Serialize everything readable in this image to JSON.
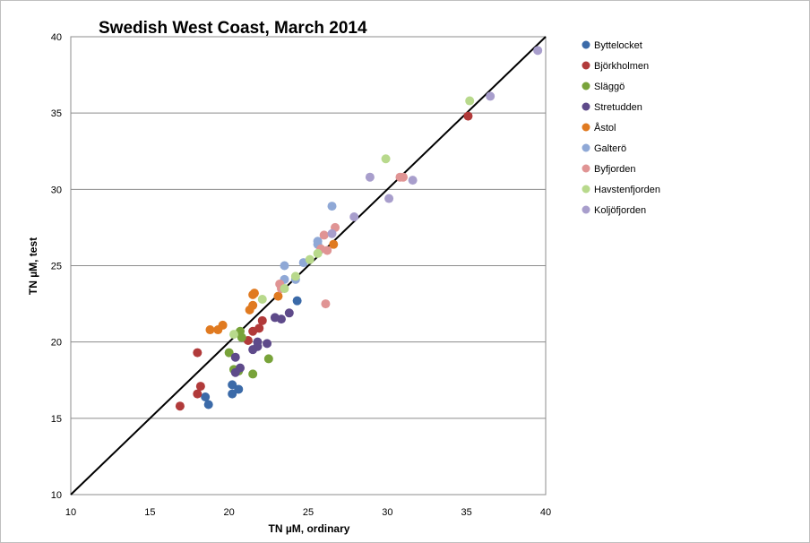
{
  "chart_data": {
    "type": "scatter",
    "title": "Swedish West Coast, March 2014",
    "xlabel": "TN µM, ordinary",
    "ylabel": "TN µM, test",
    "xlim": [
      10,
      40
    ],
    "ylim": [
      10,
      40
    ],
    "xticks": [
      10,
      15,
      20,
      25,
      30,
      35,
      40
    ],
    "yticks": [
      10,
      15,
      20,
      25,
      30,
      35,
      40
    ],
    "grid": "horizontal",
    "legend_position": "right",
    "reference_line": {
      "from": [
        10,
        10
      ],
      "to": [
        40,
        40
      ],
      "color": "#000000"
    },
    "series": [
      {
        "name": "Byttelocket",
        "color": "#3b6aa8",
        "points": [
          [
            18.5,
            16.4
          ],
          [
            18.7,
            15.9
          ],
          [
            20.2,
            17.2
          ],
          [
            20.6,
            16.9
          ],
          [
            20.2,
            16.6
          ],
          [
            24.3,
            22.7
          ]
        ]
      },
      {
        "name": "Björkholmen",
        "color": "#b13a3a",
        "points": [
          [
            16.9,
            15.8
          ],
          [
            18.0,
            16.6
          ],
          [
            18.2,
            17.1
          ],
          [
            18.0,
            19.3
          ],
          [
            21.2,
            20.1
          ],
          [
            21.5,
            20.7
          ],
          [
            21.9,
            20.9
          ],
          [
            22.1,
            21.4
          ],
          [
            35.1,
            34.8
          ]
        ]
      },
      {
        "name": "Släggö",
        "color": "#78a33a",
        "points": [
          [
            20.0,
            19.3
          ],
          [
            20.3,
            18.2
          ],
          [
            20.6,
            18.1
          ],
          [
            20.7,
            20.7
          ],
          [
            21.5,
            17.9
          ],
          [
            22.5,
            18.9
          ],
          [
            20.8,
            20.3
          ]
        ]
      },
      {
        "name": "Stretudden",
        "color": "#5e4a8a",
        "points": [
          [
            20.4,
            19.0
          ],
          [
            20.4,
            18.0
          ],
          [
            20.7,
            18.3
          ],
          [
            21.5,
            19.5
          ],
          [
            21.8,
            20.0
          ],
          [
            21.8,
            19.7
          ],
          [
            22.4,
            19.9
          ],
          [
            22.9,
            21.6
          ],
          [
            23.3,
            21.5
          ],
          [
            23.8,
            21.9
          ]
        ]
      },
      {
        "name": "Åstol",
        "color": "#e07a20",
        "points": [
          [
            18.8,
            20.8
          ],
          [
            19.3,
            20.8
          ],
          [
            19.6,
            21.1
          ],
          [
            21.3,
            22.1
          ],
          [
            21.5,
            22.4
          ],
          [
            21.5,
            23.1
          ],
          [
            21.6,
            23.2
          ],
          [
            23.1,
            23.0
          ],
          [
            26.6,
            26.4
          ]
        ]
      },
      {
        "name": "Galterö",
        "color": "#8fa8d6",
        "points": [
          [
            23.5,
            25.0
          ],
          [
            23.5,
            24.1
          ],
          [
            24.2,
            24.1
          ],
          [
            24.7,
            25.2
          ],
          [
            25.6,
            26.4
          ],
          [
            25.6,
            26.6
          ],
          [
            26.5,
            28.9
          ]
        ]
      },
      {
        "name": "Byfjorden",
        "color": "#e09494",
        "points": [
          [
            23.2,
            23.8
          ],
          [
            23.3,
            23.5
          ],
          [
            25.8,
            26.1
          ],
          [
            26.1,
            22.5
          ],
          [
            26.2,
            26.0
          ],
          [
            26.0,
            27.0
          ],
          [
            26.7,
            27.5
          ],
          [
            30.8,
            30.8
          ],
          [
            31.0,
            30.8
          ]
        ]
      },
      {
        "name": "Havstenfjorden",
        "color": "#b8d98c",
        "points": [
          [
            20.3,
            20.5
          ],
          [
            22.1,
            22.8
          ],
          [
            23.5,
            23.5
          ],
          [
            24.2,
            24.3
          ],
          [
            25.1,
            25.4
          ],
          [
            25.6,
            25.8
          ],
          [
            29.9,
            32.0
          ],
          [
            35.2,
            35.8
          ]
        ]
      },
      {
        "name": "Koljöfjorden",
        "color": "#a89ecc",
        "points": [
          [
            26.5,
            27.1
          ],
          [
            27.9,
            28.2
          ],
          [
            28.9,
            30.8
          ],
          [
            30.1,
            29.4
          ],
          [
            31.6,
            30.6
          ],
          [
            36.5,
            36.1
          ],
          [
            39.5,
            39.1
          ]
        ]
      }
    ]
  }
}
